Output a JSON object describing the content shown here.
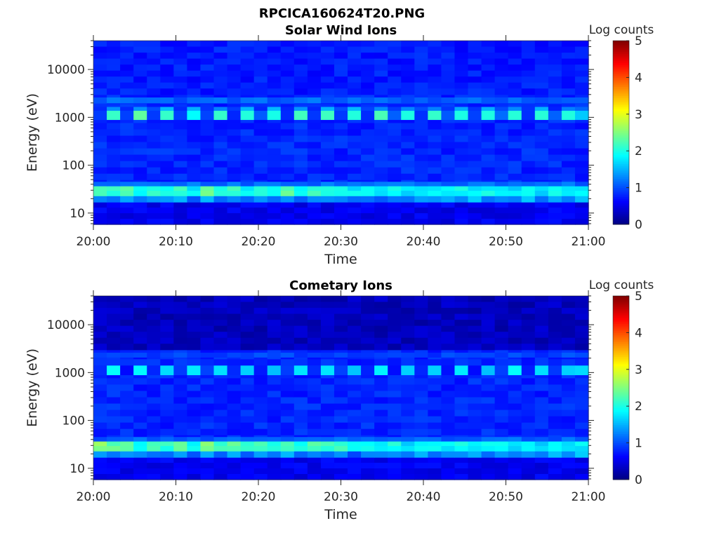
{
  "figure_title": "RPCICA160624T20.PNG",
  "chart_data": [
    {
      "type": "heatmap",
      "title": "Solar Wind Ions",
      "xlabel": "Time",
      "ylabel": "Energy (eV)",
      "x_ticks": [
        "20:00",
        "20:10",
        "20:20",
        "20:30",
        "20:40",
        "20:50",
        "21:00"
      ],
      "y_ticks": [
        "10",
        "100",
        "1000",
        "10000"
      ],
      "y_tick_values": [
        10,
        100,
        1000,
        10000
      ],
      "ylim": [
        5.8,
        40000
      ],
      "yscale": "log",
      "time_range": [
        "20:00",
        "21:00"
      ],
      "n_time_bins": 37,
      "colorbar": {
        "label": "Log counts",
        "range": [
          0,
          5
        ],
        "ticks": [
          "0",
          "1",
          "2",
          "3",
          "4",
          "5"
        ],
        "colormap": "jet"
      },
      "bands": [
        {
          "energy": [
            5.8,
            40000
          ],
          "value": 0.8
        },
        {
          "energy": [
            5.8,
            17
          ],
          "value": 0.55
        },
        {
          "energy": [
            17,
            23
          ],
          "values": [
            1.4,
            1.3,
            1.4,
            1.2,
            1.3,
            1.3,
            1.4,
            1.1,
            1.4,
            1.2,
            1.4,
            1.2,
            1.3,
            1.3,
            1.4,
            1.2,
            1.3,
            1.2,
            1.3,
            1.1,
            1.3,
            1.2,
            1.3,
            1.3,
            1.4,
            1.3,
            1.4,
            1.2,
            1.5,
            1.3,
            1.4,
            1.2,
            1.5,
            1.2,
            1.5,
            1.2,
            1.5
          ]
        },
        {
          "energy": [
            23,
            37
          ],
          "values": [
            2.3,
            2.1,
            2.2,
            1.9,
            2.1,
            2.0,
            2.2,
            1.8,
            2.4,
            2.0,
            2.2,
            1.9,
            2.1,
            2.0,
            2.3,
            1.9,
            2.1,
            2.0,
            2.0,
            1.8,
            1.9,
            1.8,
            2.0,
            1.7,
            1.8,
            1.9,
            1.8,
            1.9,
            1.8,
            1.9,
            1.8,
            1.7,
            1.9,
            1.7,
            1.9,
            1.7,
            1.8
          ]
        },
        {
          "energy": [
            37,
            45
          ],
          "value": 1.15
        },
        {
          "energy": [
            900,
            1400
          ],
          "values": [
            1.0,
            2.1,
            0.95,
            2.2,
            1.0,
            2.1,
            0.95,
            2.0,
            1.0,
            2.1,
            0.9,
            2.1,
            1.0,
            2.0,
            0.95,
            2.1,
            0.9,
            2.1,
            1.0,
            2.0,
            0.95,
            2.2,
            1.0,
            2.0,
            0.95,
            2.1,
            1.0,
            2.0,
            0.9,
            2.1,
            1.2,
            2.0,
            1.0,
            2.1,
            1.0,
            2.0,
            1.7
          ]
        },
        {
          "energy": [
            1400,
            1650
          ],
          "values": [
            0.9,
            1.4,
            0.9,
            1.4,
            0.9,
            1.4,
            0.9,
            1.4,
            0.9,
            1.4,
            0.9,
            1.4,
            0.9,
            1.4,
            0.9,
            1.4,
            0.9,
            1.4,
            0.9,
            1.4,
            0.9,
            1.4,
            0.9,
            1.4,
            0.9,
            1.4,
            0.9,
            1.4,
            0.9,
            1.4,
            1.0,
            1.4,
            0.9,
            1.4,
            0.9,
            1.4,
            1.2
          ]
        },
        {
          "energy": [
            2000,
            2600
          ],
          "value": 1.1
        },
        {
          "energy": [
            3000,
            40000
          ],
          "value": 0.75
        }
      ]
    },
    {
      "type": "heatmap",
      "title": "Cometary Ions",
      "xlabel": "Time",
      "ylabel": "Energy (eV)",
      "x_ticks": [
        "20:00",
        "20:10",
        "20:20",
        "20:30",
        "20:40",
        "20:50",
        "21:00"
      ],
      "y_ticks": [
        "10",
        "100",
        "1000",
        "10000"
      ],
      "y_tick_values": [
        10,
        100,
        1000,
        10000
      ],
      "ylim": [
        5.8,
        40000
      ],
      "yscale": "log",
      "time_range": [
        "20:00",
        "21:00"
      ],
      "n_time_bins": 37,
      "colorbar": {
        "label": "Log counts",
        "range": [
          0,
          5
        ],
        "ticks": [
          "0",
          "1",
          "2",
          "3",
          "4",
          "5"
        ],
        "colormap": "jet"
      },
      "bands": [
        {
          "energy": [
            5.8,
            40000
          ],
          "value": 0.8
        },
        {
          "energy": [
            5.8,
            17
          ],
          "value": 0.55
        },
        {
          "energy": [
            17,
            23
          ],
          "values": [
            1.4,
            1.3,
            1.4,
            1.2,
            1.3,
            1.3,
            1.4,
            1.1,
            1.4,
            1.2,
            1.4,
            1.2,
            1.3,
            1.3,
            1.4,
            1.2,
            1.3,
            1.2,
            1.3,
            1.1,
            1.3,
            1.2,
            1.3,
            1.3,
            1.4,
            1.3,
            1.4,
            1.2,
            1.5,
            1.3,
            1.4,
            1.2,
            1.5,
            1.2,
            1.5,
            1.2,
            1.5
          ]
        },
        {
          "energy": [
            23,
            37
          ],
          "values": [
            2.5,
            2.3,
            2.3,
            2.0,
            2.3,
            2.1,
            2.3,
            1.9,
            2.5,
            2.1,
            2.3,
            2.0,
            2.2,
            2.1,
            2.3,
            2.0,
            2.2,
            2.1,
            2.1,
            1.9,
            2.0,
            1.8,
            2.0,
            1.7,
            1.8,
            1.9,
            1.8,
            1.9,
            1.8,
            1.9,
            1.8,
            1.7,
            1.9,
            1.7,
            1.9,
            1.7,
            1.8
          ]
        },
        {
          "energy": [
            37,
            45
          ],
          "value": 1.1
        },
        {
          "energy": [
            3000,
            40000
          ],
          "value": 0.3
        },
        {
          "energy": [
            900,
            1400
          ],
          "values": [
            0.8,
            1.8,
            0.8,
            1.8,
            0.8,
            1.8,
            0.8,
            1.7,
            0.8,
            1.8,
            0.8,
            1.7,
            0.8,
            1.7,
            0.8,
            1.8,
            0.8,
            1.8,
            0.8,
            1.7,
            0.8,
            1.8,
            0.8,
            1.7,
            0.8,
            1.8,
            0.8,
            1.7,
            0.8,
            1.7,
            1.0,
            1.8,
            0.8,
            1.8,
            0.8,
            1.7,
            1.6
          ]
        },
        {
          "energy": [
            2100,
            2600
          ],
          "value": 0.95
        }
      ]
    }
  ]
}
